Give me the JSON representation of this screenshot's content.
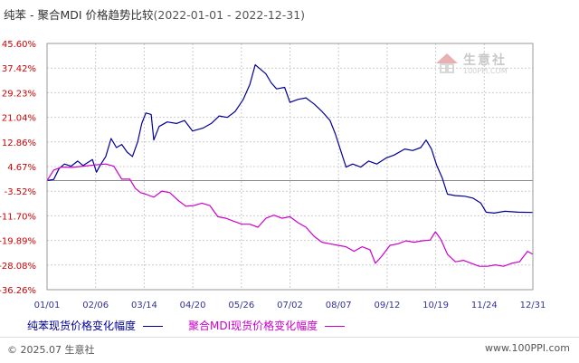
{
  "title": {
    "main": "纯苯 - 聚合MDI 价格趋势比较",
    "range": "(2022-01-01 - 2022-12-31)"
  },
  "watermark": {
    "name": "生意社",
    "url": "100PPI.COM"
  },
  "footer": {
    "copyright": "© 2025.07 生意社",
    "site": "www.100PPI.com"
  },
  "colors": {
    "series1": "#000099",
    "series2": "#cc00cc",
    "axis_text": "#cc0000",
    "date_text": "#333399",
    "grid": "#cccccc"
  },
  "chart_data": {
    "type": "line",
    "y_ticks": [
      "45.60%",
      "37.42%",
      "29.23%",
      "21.04%",
      "12.86%",
      "4.67%",
      "-3.52%",
      "-11.70%",
      "-19.89%",
      "-28.08%",
      "-36.26%"
    ],
    "x_ticks": [
      "01/01",
      "02/06",
      "03/14",
      "04/20",
      "05/26",
      "07/02",
      "08/07",
      "09/12",
      "10/19",
      "11/24",
      "12/31"
    ],
    "ylim": [
      -36.26,
      45.6
    ],
    "xlim": [
      "2022-01-01",
      "2022-12-31"
    ],
    "grid": true,
    "legend_position": "bottom",
    "series": [
      {
        "name": "纯苯现货价格变化幅度",
        "color": "#000099",
        "points": [
          [
            "2022-01-01",
            0.0
          ],
          [
            "2022-01-06",
            0.4
          ],
          [
            "2022-01-10",
            4.0
          ],
          [
            "2022-01-14",
            5.5
          ],
          [
            "2022-01-19",
            4.8
          ],
          [
            "2022-01-24",
            6.5
          ],
          [
            "2022-01-28",
            5.0
          ],
          [
            "2022-02-04",
            7.0
          ],
          [
            "2022-02-07",
            2.8
          ],
          [
            "2022-02-10",
            5.2
          ],
          [
            "2022-02-14",
            8.0
          ],
          [
            "2022-02-18",
            14.0
          ],
          [
            "2022-02-22",
            11.0
          ],
          [
            "2022-02-26",
            12.0
          ],
          [
            "2022-03-02",
            9.5
          ],
          [
            "2022-03-06",
            8.0
          ],
          [
            "2022-03-10",
            13.0
          ],
          [
            "2022-03-13",
            19.0
          ],
          [
            "2022-03-16",
            22.5
          ],
          [
            "2022-03-20",
            22.0
          ],
          [
            "2022-03-22",
            13.5
          ],
          [
            "2022-03-26",
            18.0
          ],
          [
            "2022-04-01",
            19.5
          ],
          [
            "2022-04-08",
            19.0
          ],
          [
            "2022-04-14",
            20.0
          ],
          [
            "2022-04-20",
            16.5
          ],
          [
            "2022-04-28",
            17.5
          ],
          [
            "2022-05-04",
            19.0
          ],
          [
            "2022-05-10",
            21.5
          ],
          [
            "2022-05-16",
            21.0
          ],
          [
            "2022-05-22",
            23.0
          ],
          [
            "2022-05-28",
            27.0
          ],
          [
            "2022-06-02",
            32.0
          ],
          [
            "2022-06-06",
            38.5
          ],
          [
            "2022-06-10",
            37.0
          ],
          [
            "2022-06-14",
            35.5
          ],
          [
            "2022-06-18",
            32.5
          ],
          [
            "2022-06-22",
            30.5
          ],
          [
            "2022-06-28",
            31.0
          ],
          [
            "2022-07-02",
            26.0
          ],
          [
            "2022-07-08",
            27.0
          ],
          [
            "2022-07-14",
            27.5
          ],
          [
            "2022-07-20",
            25.5
          ],
          [
            "2022-07-26",
            23.0
          ],
          [
            "2022-08-01",
            20.0
          ],
          [
            "2022-08-05",
            15.5
          ],
          [
            "2022-08-09",
            10.0
          ],
          [
            "2022-08-13",
            4.5
          ],
          [
            "2022-08-18",
            5.5
          ],
          [
            "2022-08-24",
            4.5
          ],
          [
            "2022-08-30",
            6.5
          ],
          [
            "2022-09-05",
            5.5
          ],
          [
            "2022-09-12",
            7.5
          ],
          [
            "2022-09-18",
            8.5
          ],
          [
            "2022-09-26",
            10.5
          ],
          [
            "2022-10-02",
            10.0
          ],
          [
            "2022-10-08",
            11.0
          ],
          [
            "2022-10-12",
            13.5
          ],
          [
            "2022-10-16",
            10.5
          ],
          [
            "2022-10-20",
            5.0
          ],
          [
            "2022-10-24",
            1.0
          ],
          [
            "2022-10-28",
            -4.5
          ],
          [
            "2022-11-03",
            -5.0
          ],
          [
            "2022-11-10",
            -5.2
          ],
          [
            "2022-11-16",
            -5.8
          ],
          [
            "2022-11-22",
            -7.5
          ],
          [
            "2022-11-26",
            -10.5
          ],
          [
            "2022-12-02",
            -10.8
          ],
          [
            "2022-12-10",
            -10.2
          ],
          [
            "2022-12-20",
            -10.5
          ],
          [
            "2022-12-31",
            -10.6
          ]
        ]
      },
      {
        "name": "聚合MDI现货价格变化幅度",
        "color": "#cc00cc",
        "points": [
          [
            "2022-01-01",
            0.0
          ],
          [
            "2022-01-06",
            3.5
          ],
          [
            "2022-01-12",
            4.5
          ],
          [
            "2022-01-20",
            4.4
          ],
          [
            "2022-01-28",
            4.8
          ],
          [
            "2022-02-06",
            5.2
          ],
          [
            "2022-02-14",
            5.5
          ],
          [
            "2022-02-20",
            4.8
          ],
          [
            "2022-02-26",
            0.5
          ],
          [
            "2022-03-04",
            0.5
          ],
          [
            "2022-03-08",
            -2.5
          ],
          [
            "2022-03-12",
            -4.0
          ],
          [
            "2022-03-16",
            -4.5
          ],
          [
            "2022-03-22",
            -5.5
          ],
          [
            "2022-03-28",
            -3.5
          ],
          [
            "2022-04-03",
            -4.0
          ],
          [
            "2022-04-09",
            -6.5
          ],
          [
            "2022-04-15",
            -8.5
          ],
          [
            "2022-04-21",
            -8.3
          ],
          [
            "2022-04-27",
            -7.5
          ],
          [
            "2022-05-03",
            -8.3
          ],
          [
            "2022-05-09",
            -12.0
          ],
          [
            "2022-05-15",
            -12.5
          ],
          [
            "2022-05-21",
            -13.5
          ],
          [
            "2022-05-27",
            -14.5
          ],
          [
            "2022-06-02",
            -14.5
          ],
          [
            "2022-06-08",
            -15.5
          ],
          [
            "2022-06-14",
            -12.5
          ],
          [
            "2022-06-20",
            -11.5
          ],
          [
            "2022-06-26",
            -12.5
          ],
          [
            "2022-07-02",
            -12.0
          ],
          [
            "2022-07-08",
            -14.0
          ],
          [
            "2022-07-14",
            -15.5
          ],
          [
            "2022-07-20",
            -18.5
          ],
          [
            "2022-07-26",
            -20.5
          ],
          [
            "2022-08-01",
            -21.0
          ],
          [
            "2022-08-07",
            -21.5
          ],
          [
            "2022-08-13",
            -22.0
          ],
          [
            "2022-08-19",
            -23.5
          ],
          [
            "2022-08-25",
            -22.0
          ],
          [
            "2022-08-31",
            -23.0
          ],
          [
            "2022-09-04",
            -27.5
          ],
          [
            "2022-09-09",
            -25.0
          ],
          [
            "2022-09-15",
            -21.5
          ],
          [
            "2022-09-21",
            -21.0
          ],
          [
            "2022-09-27",
            -20.0
          ],
          [
            "2022-10-03",
            -20.5
          ],
          [
            "2022-10-09",
            -20.0
          ],
          [
            "2022-10-15",
            -19.8
          ],
          [
            "2022-10-19",
            -17.0
          ],
          [
            "2022-10-23",
            -19.5
          ],
          [
            "2022-10-28",
            -24.5
          ],
          [
            "2022-11-03",
            -27.0
          ],
          [
            "2022-11-09",
            -26.5
          ],
          [
            "2022-11-15",
            -27.5
          ],
          [
            "2022-11-21",
            -28.5
          ],
          [
            "2022-11-27",
            -28.5
          ],
          [
            "2022-12-03",
            -28.0
          ],
          [
            "2022-12-09",
            -28.5
          ],
          [
            "2022-12-15",
            -27.5
          ],
          [
            "2022-12-21",
            -27.0
          ],
          [
            "2022-12-27",
            -23.5
          ],
          [
            "2022-12-31",
            -24.5
          ]
        ]
      }
    ]
  }
}
